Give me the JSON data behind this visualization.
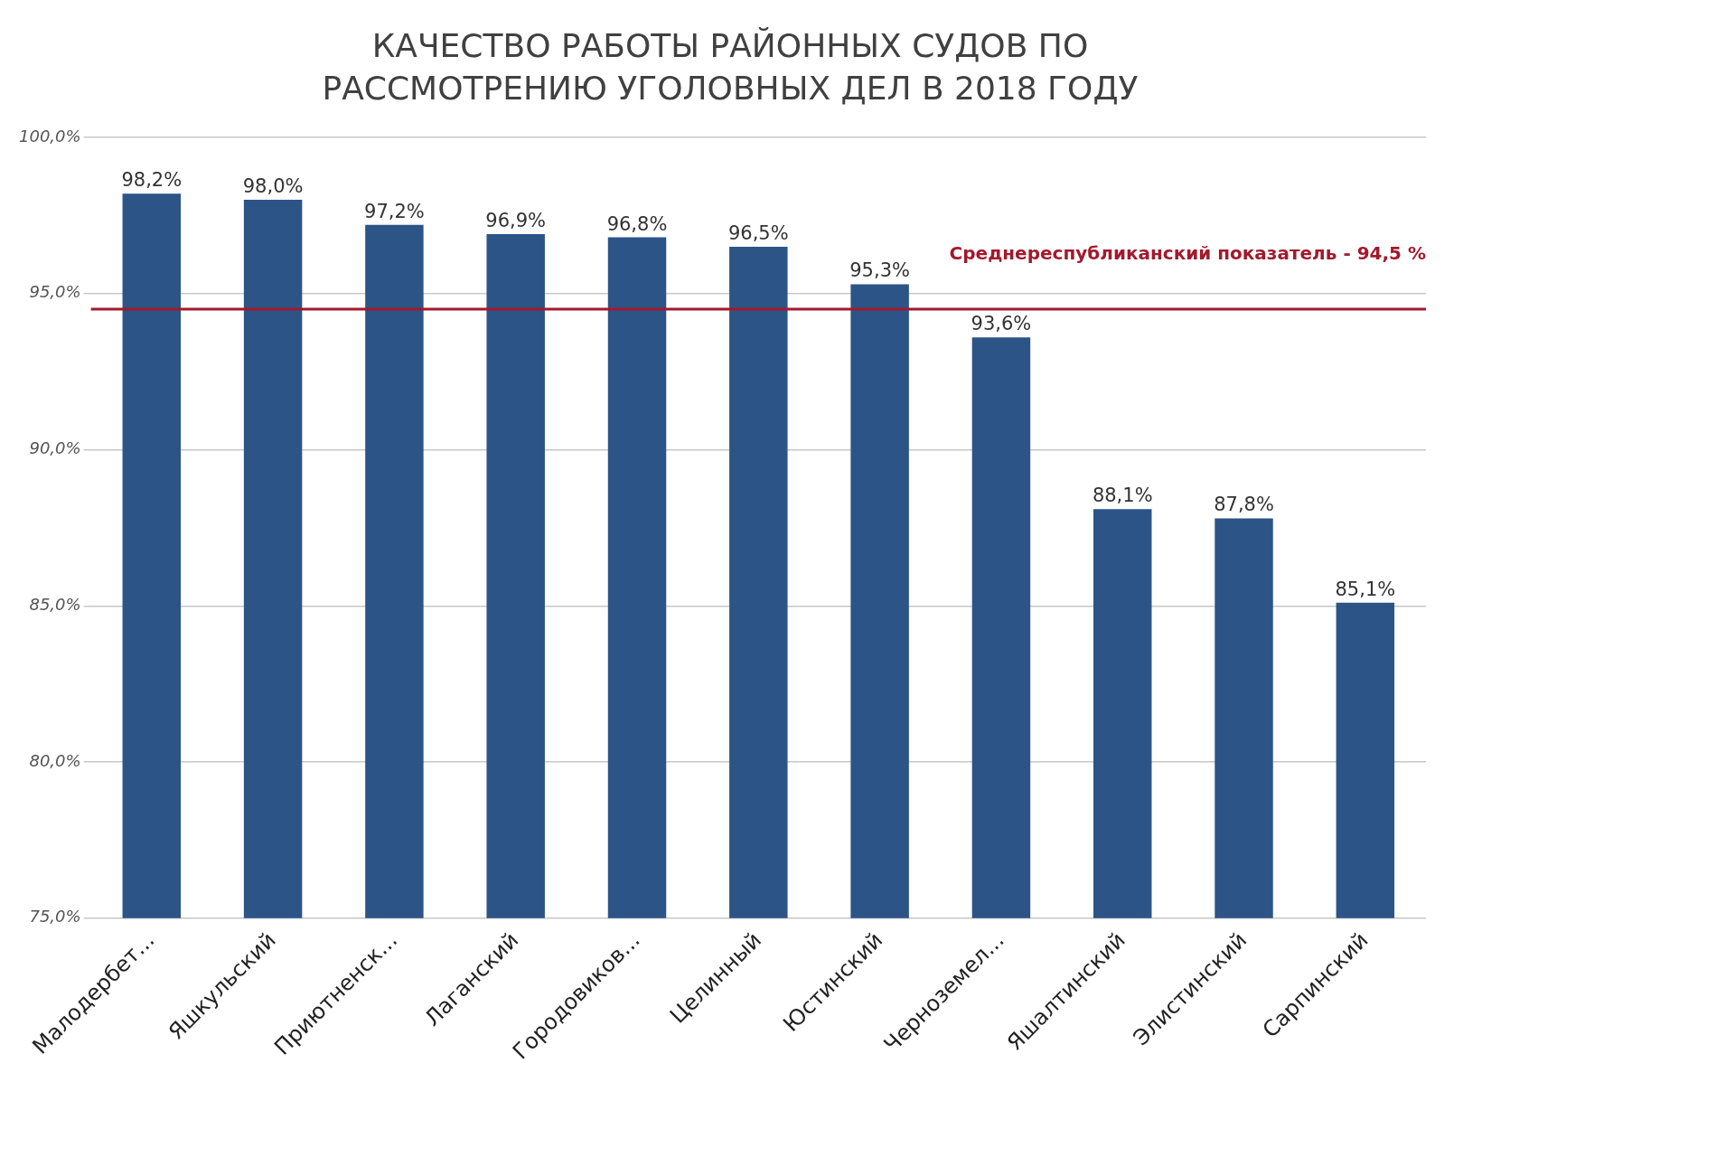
{
  "chart_data": {
    "type": "bar",
    "title": "КАЧЕСТВО РАБОТЫ РАЙОННЫХ СУДОВ ПО РАССМОТРЕНИЮ УГОЛОВНЫХ ДЕЛ В 2018 ГОДУ",
    "categories": [
      "Малодербет...",
      "Яшкульский",
      "Приютненск...",
      "Лаганский",
      "Городовиков...",
      "Целинный",
      "Юстинский",
      "Черноземел...",
      "Яшалтинский",
      "Элистинский",
      "Сарпинский"
    ],
    "values": [
      98.2,
      98.0,
      97.2,
      96.9,
      96.8,
      96.5,
      95.3,
      93.6,
      88.1,
      87.8,
      85.1
    ],
    "value_labels": [
      "98,2%",
      "98,0%",
      "97,2%",
      "96,9%",
      "96,8%",
      "96,5%",
      "95,3%",
      "93,6%",
      "88,1%",
      "87,8%",
      "85,1%"
    ],
    "color": "#2c5487",
    "ylim": [
      75,
      100
    ],
    "yticks": [
      {
        "value": 75,
        "label": "75,0%"
      },
      {
        "value": 80,
        "label": "80,0%"
      },
      {
        "value": 85,
        "label": "85,0%"
      },
      {
        "value": 90,
        "label": "90,0%"
      },
      {
        "value": 95,
        "label": "95,0%"
      },
      {
        "value": 100,
        "label": "100,0%"
      }
    ],
    "grid": "y",
    "ref_lines": [
      {
        "axis": "y",
        "value": 94.5,
        "label": "Среднереспубликанский показатель - 94,5 %",
        "color": "#a3192c"
      }
    ]
  }
}
